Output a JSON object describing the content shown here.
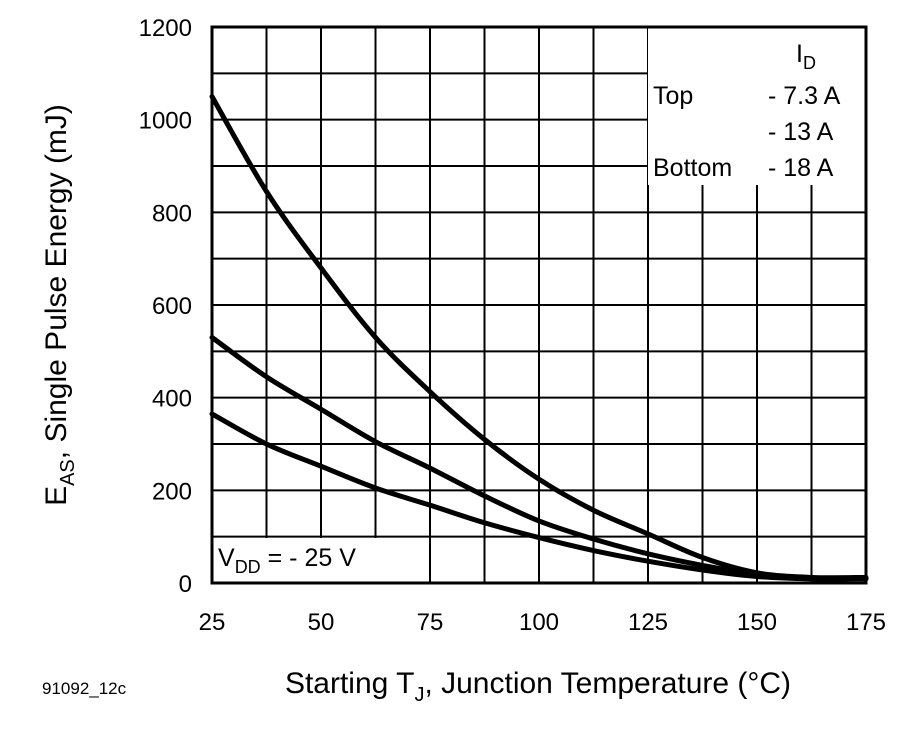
{
  "chart_data": {
    "type": "line",
    "title": "",
    "xlabel": {
      "main": "Starting T",
      "sub": "J",
      "rest": ", Junction Temperature (°C)"
    },
    "ylabel": {
      "main": "E",
      "sub": "AS",
      "rest": ", Single Pulse Energy (mJ)"
    },
    "xlim": [
      25,
      175
    ],
    "ylim": [
      0,
      1200
    ],
    "x_ticks": [
      "25",
      "50",
      "75",
      "100",
      "125",
      "150",
      "175"
    ],
    "y_ticks": [
      "0",
      "200",
      "400",
      "600",
      "800",
      "1000",
      "1200"
    ],
    "grid": true,
    "x": [
      25,
      37.5,
      50,
      62.5,
      75,
      87.5,
      100,
      112.5,
      125,
      137.5,
      150,
      162.5,
      175
    ],
    "series": [
      {
        "name": "- 7.3 A",
        "values": [
          1050,
          845,
          680,
          530,
          413,
          310,
          224,
          157,
          106,
          55,
          22,
          12,
          12
        ]
      },
      {
        "name": "- 13 A",
        "values": [
          530,
          445,
          375,
          305,
          248,
          188,
          134,
          95,
          63,
          38,
          18,
          10,
          10
        ]
      },
      {
        "name": "- 18 A",
        "values": [
          365,
          300,
          252,
          205,
          168,
          130,
          98,
          70,
          47,
          28,
          14,
          9,
          9
        ]
      }
    ],
    "legend": {
      "placement": "top-right",
      "header": {
        "main": "I",
        "sub": "D"
      },
      "rows": [
        {
          "label": "Top",
          "value": "- 7.3 A"
        },
        {
          "label": "",
          "value": "- 13 A"
        },
        {
          "label": "Bottom",
          "value": "- 18 A"
        }
      ]
    },
    "annotation": {
      "main": "V",
      "sub": "DD",
      "rest": " = - 25 V"
    },
    "figure_id": "91092_12c",
    "line_color": "#000000"
  }
}
